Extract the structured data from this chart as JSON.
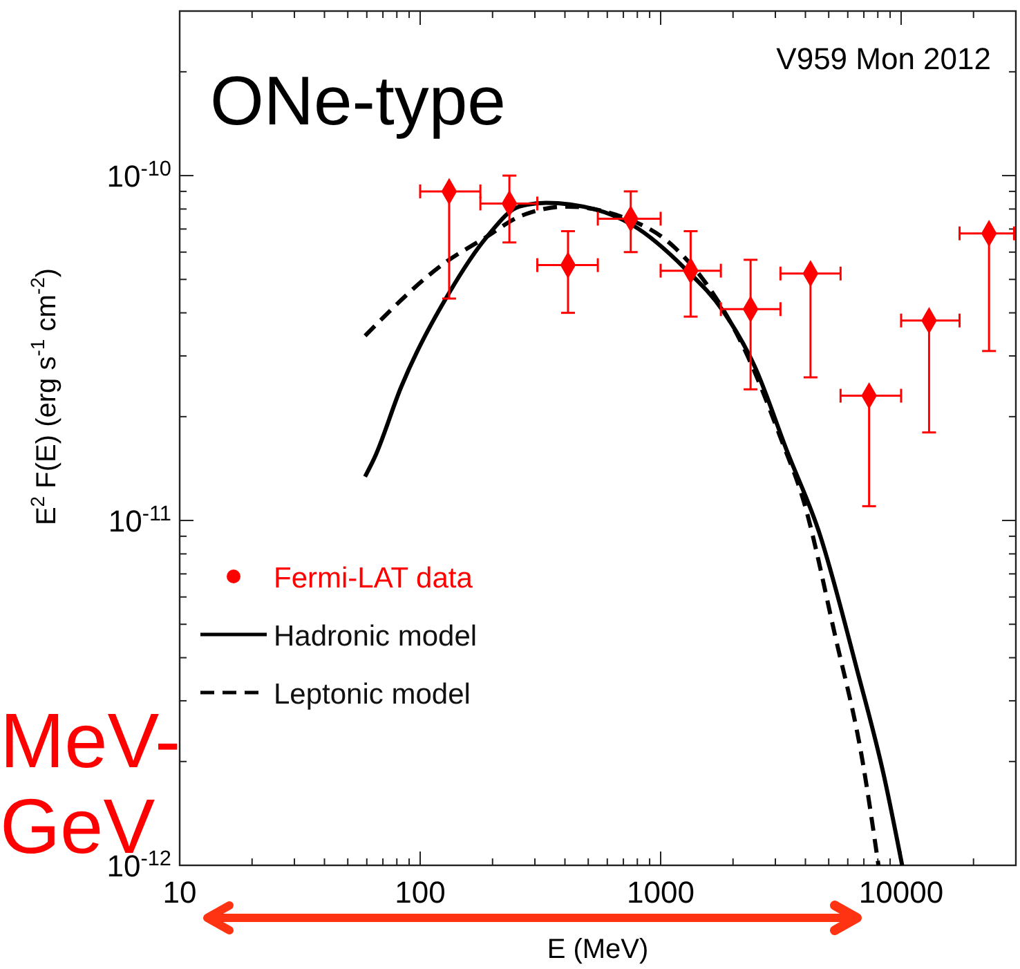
{
  "chart_data": {
    "type": "scatter",
    "xlabel": "E (MeV)",
    "ylabel": "E$^{2}$ F(E) (erg s$^{-1}$ cm$^{-2}$)",
    "annotations": [
      "ONe-type",
      "V959 Mon 2012",
      "MeV-GeV"
    ],
    "log": "xy",
    "grid": false,
    "legend": "bottom left",
    "xlim": [
      10,
      30000
    ],
    "xticks": [
      10,
      {
        "value": 20,
        "label": null
      },
      {
        "value": 30,
        "label": null
      },
      {
        "value": 40,
        "label": null
      },
      {
        "value": 50,
        "label": null
      },
      {
        "value": 60,
        "label": null
      },
      {
        "value": 70,
        "label": null
      },
      {
        "value": 80,
        "label": null
      },
      {
        "value": 90,
        "label": null
      },
      100,
      {
        "value": 200,
        "label": null
      },
      {
        "value": 300,
        "label": null
      },
      {
        "value": 400,
        "label": null
      },
      {
        "value": 500,
        "label": null
      },
      {
        "value": 600,
        "label": null
      },
      {
        "value": 700,
        "label": null
      },
      {
        "value": 800,
        "label": null
      },
      {
        "value": 900,
        "label": null
      },
      1000,
      {
        "value": 2000,
        "label": null
      },
      {
        "value": 3000,
        "label": null
      },
      {
        "value": 4000,
        "label": null
      },
      {
        "value": 5000,
        "label": null
      },
      {
        "value": 6000,
        "label": null
      },
      {
        "value": 7000,
        "label": null
      },
      {
        "value": 8000,
        "label": null
      },
      {
        "value": 9000,
        "label": null
      },
      10000,
      {
        "value": 20000,
        "label": null
      }
    ],
    "ylim": [
      1e-12,
      3e-10
    ],
    "yticks": [
      {
        "value": 1e-12,
        "label": "10$^{-12}$"
      },
      {
        "value": 2e-12,
        "label": null
      },
      {
        "value": 3e-12,
        "label": null
      },
      {
        "value": 4e-12,
        "label": null
      },
      {
        "value": 5e-12,
        "label": null
      },
      {
        "value": 6e-12,
        "label": null
      },
      {
        "value": 7e-12,
        "label": null
      },
      {
        "value": 8e-12,
        "label": null
      },
      {
        "value": 9e-12,
        "label": null
      },
      {
        "value": 1e-11,
        "label": "10$^{-11}$"
      },
      {
        "value": 2e-11,
        "label": null
      },
      {
        "value": 3e-11,
        "label": null
      },
      {
        "value": 4e-11,
        "label": null
      },
      {
        "value": 5e-11,
        "label": null
      },
      {
        "value": 6e-11,
        "label": null
      },
      {
        "value": 7e-11,
        "label": null
      },
      {
        "value": 8e-11,
        "label": null
      },
      {
        "value": 9e-11,
        "label": null
      },
      {
        "value": 1e-10,
        "label": "10$^{-10}$"
      },
      {
        "value": 2e-10,
        "label": null
      }
    ],
    "series": [
      {
        "name": "Fermi-LAT data",
        "type": "scatter",
        "marker": "diamond",
        "color": "#ff0000",
        "x": [
          132,
          235,
          412,
          751,
          1333,
          2366,
          4200,
          7360,
          13070,
          23200
        ],
        "values": [
          9e-11,
          8.3e-11,
          5.5e-11,
          7.5e-11,
          5.3e-11,
          4.1e-11,
          5.2e-11,
          2.3e-11,
          3.8e-11,
          6.8e-11
        ],
        "errors": [
          [
            4.4e-11,
            9e-11
          ],
          [
            6.4e-11,
            1e-10
          ],
          [
            4e-11,
            6.9e-11
          ],
          [
            6e-11,
            9e-11
          ],
          [
            3.9e-11,
            6.9e-11
          ],
          [
            2.4e-11,
            5.7e-11
          ],
          [
            2.6e-11,
            5.2e-11
          ],
          [
            1.1e-11,
            2.3e-11
          ],
          [
            1.8e-11,
            3.8e-11
          ],
          [
            3.1e-11,
            6.8e-11
          ]
        ],
        "xerrors": [
          [
            100,
            178
          ],
          [
            178,
            307
          ],
          [
            307,
            548
          ],
          [
            548,
            1000
          ],
          [
            1000,
            1780
          ],
          [
            1780,
            3150
          ],
          [
            3150,
            5600
          ],
          [
            5600,
            10000
          ],
          [
            10000,
            17500
          ],
          [
            17500,
            29500
          ]
        ]
      },
      {
        "name": "Hadronic model",
        "type": "line",
        "color": "#000000",
        "line_style": "solid",
        "x": [
          59,
          64.6,
          83.4,
          132,
          190,
          258,
          334,
          527,
          760,
          1265,
          1823,
          2460,
          3365,
          4570,
          6550,
          8510,
          10100
        ],
        "values": [
          1.34e-11,
          1.52e-11,
          2.44e-11,
          4.57e-11,
          6.66e-11,
          8.13e-11,
          8.34e-11,
          8e-11,
          7.2e-11,
          5.37e-11,
          4.04e-11,
          2.8e-11,
          1.58e-11,
          9.2e-12,
          3.7e-12,
          1.8e-12,
          1e-12
        ]
      },
      {
        "name": "Leptonic model",
        "type": "line",
        "color": "#000000",
        "line_style": "dashed",
        "x": [
          59,
          126,
          190,
          258,
          409,
          650,
          1140,
          1730,
          2230,
          3190,
          3930,
          5310,
          6900,
          8050
        ],
        "values": [
          3.43e-11,
          5.57e-11,
          6.66e-11,
          7.6e-11,
          8.13e-11,
          7.7e-11,
          6.2e-11,
          4.33e-11,
          3.14e-11,
          1.7e-11,
          1.14e-11,
          4.65e-12,
          2.02e-12,
          1e-12
        ]
      }
    ]
  }
}
